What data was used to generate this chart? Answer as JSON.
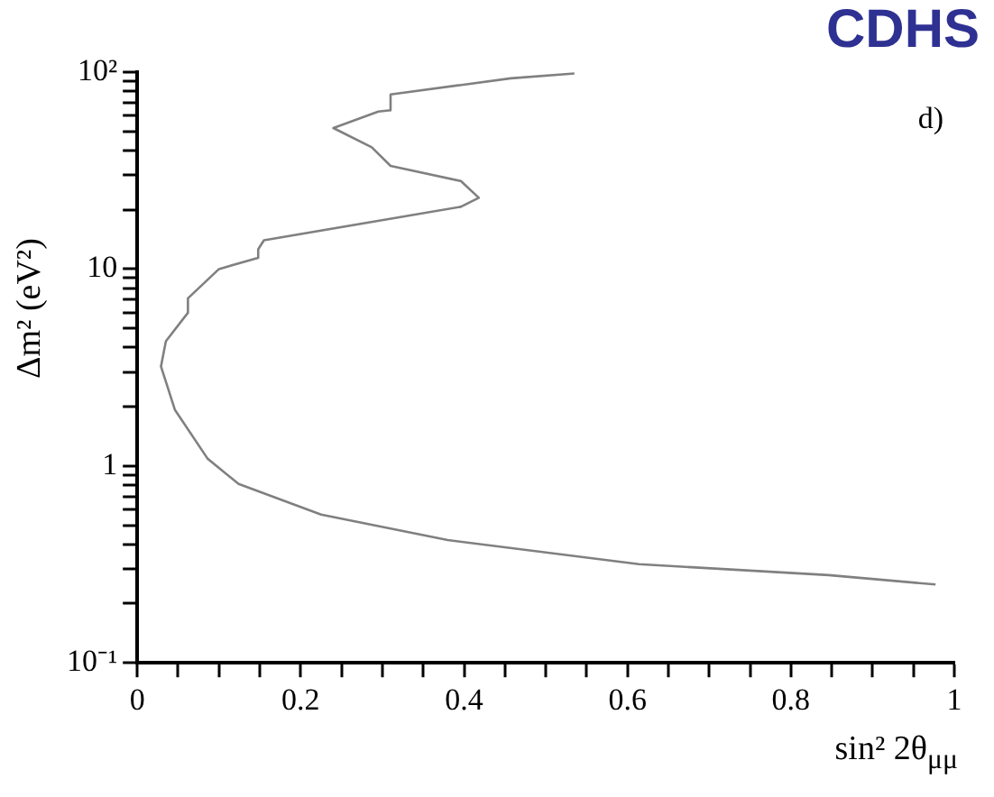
{
  "chart_data": {
    "type": "line",
    "title": "CDHS",
    "xlabel": "sin² 2θ$_{μμ}$",
    "ylabel": "Δm² (eV²)",
    "annotations": [
      "d)"
    ],
    "log": "y",
    "grid": false,
    "legend": false,
    "marker": "none",
    "line_style": "solid",
    "xlim": [
      0,
      1
    ],
    "ylim": [
      0.1,
      100
    ],
    "xticks": [
      0,
      {
        "value": 0.05,
        "label": null
      },
      {
        "value": 0.1,
        "label": null
      },
      {
        "value": 0.15,
        "label": null
      },
      0.2,
      {
        "value": 0.25,
        "label": null
      },
      {
        "value": 0.3,
        "label": null
      },
      {
        "value": 0.35,
        "label": null
      },
      0.4,
      {
        "value": 0.45,
        "label": null
      },
      {
        "value": 0.5,
        "label": null
      },
      {
        "value": 0.55,
        "label": null
      },
      0.6,
      {
        "value": 0.65,
        "label": null
      },
      {
        "value": 0.7,
        "label": null
      },
      {
        "value": 0.75,
        "label": null
      },
      0.8,
      {
        "value": 0.85,
        "label": null
      },
      {
        "value": 0.9,
        "label": null
      },
      {
        "value": 0.95,
        "label": null
      },
      1
    ],
    "yticks": [
      {
        "value": 0.1,
        "label": "10⁻¹"
      },
      {
        "value": 0.2,
        "label": null
      },
      {
        "value": 0.3,
        "label": null
      },
      {
        "value": 0.4,
        "label": null
      },
      {
        "value": 0.5,
        "label": null
      },
      {
        "value": 0.6,
        "label": null
      },
      {
        "value": 0.7,
        "label": null
      },
      {
        "value": 0.8,
        "label": null
      },
      {
        "value": 0.9,
        "label": null
      },
      1,
      {
        "value": 2,
        "label": null
      },
      {
        "value": 3,
        "label": null
      },
      {
        "value": 4,
        "label": null
      },
      {
        "value": 5,
        "label": null
      },
      {
        "value": 6,
        "label": null
      },
      {
        "value": 7,
        "label": null
      },
      {
        "value": 8,
        "label": null
      },
      {
        "value": 9,
        "label": null
      },
      10,
      {
        "value": 20,
        "label": null
      },
      {
        "value": 30,
        "label": null
      },
      {
        "value": 40,
        "label": null
      },
      {
        "value": 50,
        "label": null
      },
      {
        "value": 60,
        "label": null
      },
      {
        "value": 70,
        "label": null
      },
      {
        "value": 80,
        "label": null
      },
      {
        "value": 90,
        "label": null
      },
      {
        "value": 100,
        "label": "10²"
      }
    ],
    "series": [
      {
        "color": "#808080",
        "x": [
          0.535,
          0.457,
          0.31,
          0.31,
          0.295,
          0.24,
          0.287,
          0.31,
          0.396,
          0.418,
          0.396,
          0.155,
          0.148,
          0.148,
          0.1,
          0.062,
          0.062,
          0.035,
          0.029,
          0.046,
          0.086,
          0.124,
          0.225,
          0.38,
          0.614,
          0.846,
          0.977
        ],
        "values": [
          98.5,
          93,
          77,
          64,
          63,
          52,
          41.5,
          33.4,
          28,
          23,
          20.7,
          14,
          12.6,
          11.4,
          10,
          7.1,
          6,
          4.3,
          3.2,
          1.93,
          1.09,
          0.81,
          0.566,
          0.42,
          0.317,
          0.279,
          0.25
        ]
      }
    ]
  }
}
